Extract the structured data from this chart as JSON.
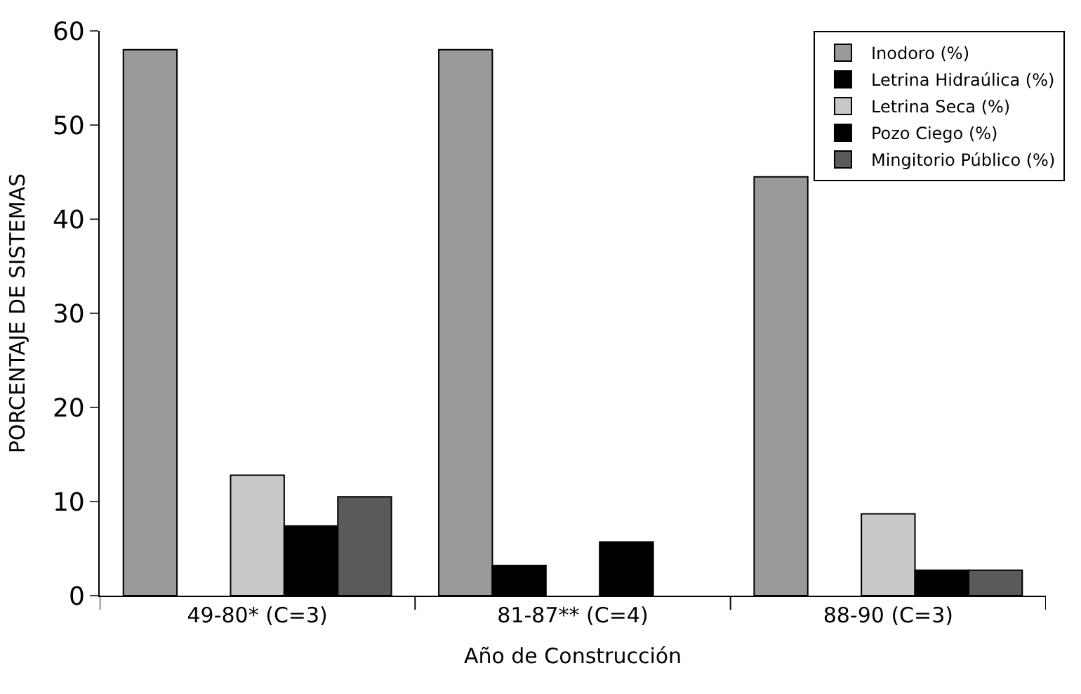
{
  "chart_data": {
    "type": "bar",
    "xlabel": "Año de Construcción",
    "ylabel": "PORCENTAJE DE SISTEMAS",
    "categories": [
      "49-80* (C=3)",
      "81-87** (C=4)",
      "88-90 (C=3)"
    ],
    "series": [
      {
        "name": "Inodoro (%)",
        "color": "#9a9a9a",
        "values": [
          58,
          58,
          44.5
        ]
      },
      {
        "name": "Letrina Hidraúlica (%)",
        "color": "#000000",
        "values": [
          null,
          3.2,
          null
        ]
      },
      {
        "name": "Letrina Seca (%)",
        "color": "#c8c8c8",
        "values": [
          12.8,
          null,
          8.7
        ]
      },
      {
        "name": "Pozo Ciego (%)",
        "color": "#000000",
        "values": [
          7.4,
          5.7,
          2.7
        ]
      },
      {
        "name": "Mingitorio Público (%)",
        "color": "#5a5a5a",
        "values": [
          10.5,
          null,
          2.7
        ]
      }
    ],
    "ylim": [
      0,
      60
    ],
    "yticks": [
      0,
      10,
      20,
      30,
      40,
      50,
      60
    ],
    "legend": "top right"
  }
}
